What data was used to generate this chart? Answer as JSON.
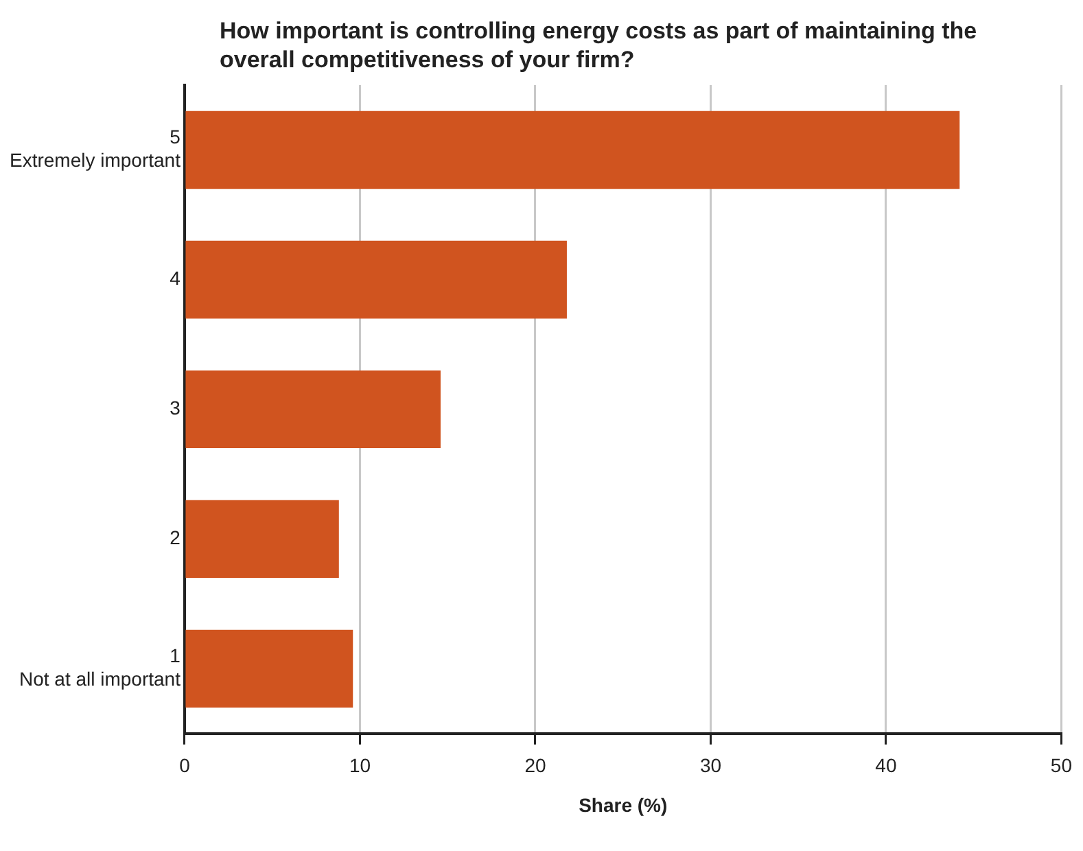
{
  "chart_data": {
    "type": "bar",
    "orientation": "horizontal",
    "title": "How important is controlling energy costs as part of maintaining the overall competitiveness of your firm?",
    "xlabel": "Share (%)",
    "categories": [
      "5\nExtremely important",
      "4",
      "3",
      "2",
      "1\nNot at all important"
    ],
    "values": [
      44.2,
      21.8,
      14.6,
      8.8,
      9.6
    ],
    "color": "#d0541f",
    "xlim": [
      0,
      50
    ],
    "xticks": [
      0,
      10,
      20,
      30,
      40,
      50
    ],
    "grid": "x"
  }
}
